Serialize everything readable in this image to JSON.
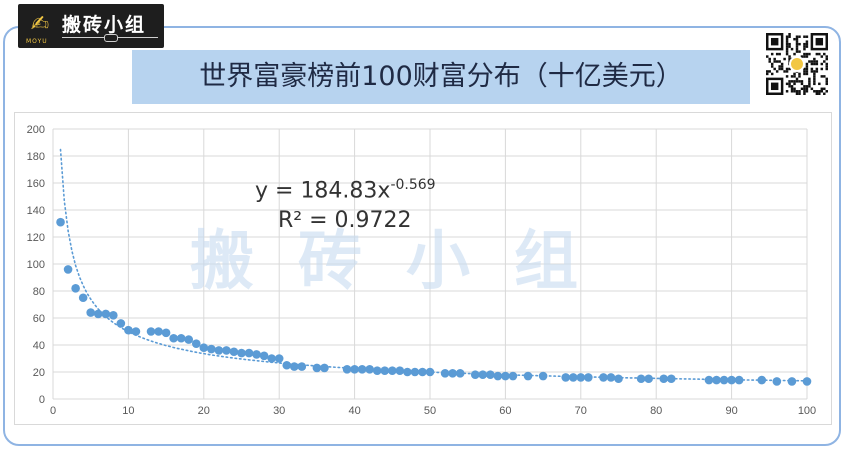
{
  "brand": {
    "logo_text": "搬砖小组",
    "logo_sub": "MOYU",
    "logo_icon": "leaf-pen-icon",
    "watermark": "搬砖小组"
  },
  "title": "世界富豪榜前100财富分布（十亿美元）",
  "qr_code": "qr-code-icon",
  "chart_data": {
    "type": "scatter",
    "title": "",
    "xlabel": "",
    "ylabel": "",
    "xlim": [
      0,
      100
    ],
    "ylim": [
      0,
      200
    ],
    "x_ticks": [
      0,
      10,
      20,
      30,
      40,
      50,
      60,
      70,
      80,
      90,
      100
    ],
    "y_ticks": [
      0,
      20,
      40,
      60,
      80,
      100,
      120,
      140,
      160,
      180,
      200
    ],
    "grid": true,
    "point_color": "#5b9bd5",
    "trendline": {
      "type": "power",
      "a": 184.83,
      "b": -0.569,
      "equation_prefix": "y = 184.83x",
      "equation_exp": "-0.569",
      "r2_text": "R² = 0.9722",
      "color": "#5b9bd5"
    },
    "points": [
      [
        1,
        131
      ],
      [
        2,
        96
      ],
      [
        3,
        82
      ],
      [
        4,
        75
      ],
      [
        5,
        64
      ],
      [
        6,
        63
      ],
      [
        7,
        63
      ],
      [
        8,
        62
      ],
      [
        9,
        56
      ],
      [
        10,
        51
      ],
      [
        11,
        50
      ],
      [
        13,
        50
      ],
      [
        14,
        50
      ],
      [
        15,
        49
      ],
      [
        16,
        45
      ],
      [
        17,
        45
      ],
      [
        18,
        44
      ],
      [
        19,
        41
      ],
      [
        20,
        38
      ],
      [
        21,
        37
      ],
      [
        22,
        36
      ],
      [
        23,
        36
      ],
      [
        24,
        35
      ],
      [
        25,
        34
      ],
      [
        26,
        34
      ],
      [
        27,
        33
      ],
      [
        28,
        32
      ],
      [
        29,
        30
      ],
      [
        30,
        30
      ],
      [
        31,
        25
      ],
      [
        32,
        24
      ],
      [
        33,
        24
      ],
      [
        35,
        23
      ],
      [
        36,
        23
      ],
      [
        39,
        22
      ],
      [
        40,
        22
      ],
      [
        41,
        22
      ],
      [
        42,
        22
      ],
      [
        43,
        21
      ],
      [
        44,
        21
      ],
      [
        45,
        21
      ],
      [
        46,
        21
      ],
      [
        47,
        20
      ],
      [
        48,
        20
      ],
      [
        49,
        20
      ],
      [
        50,
        20
      ],
      [
        52,
        19
      ],
      [
        53,
        19
      ],
      [
        54,
        19
      ],
      [
        56,
        18
      ],
      [
        57,
        18
      ],
      [
        58,
        18
      ],
      [
        59,
        17
      ],
      [
        60,
        17
      ],
      [
        61,
        17
      ],
      [
        63,
        17
      ],
      [
        65,
        17
      ],
      [
        68,
        16
      ],
      [
        69,
        16
      ],
      [
        70,
        16
      ],
      [
        71,
        16
      ],
      [
        73,
        16
      ],
      [
        74,
        16
      ],
      [
        75,
        15
      ],
      [
        78,
        15
      ],
      [
        79,
        15
      ],
      [
        81,
        15
      ],
      [
        82,
        15
      ],
      [
        87,
        14
      ],
      [
        88,
        14
      ],
      [
        89,
        14
      ],
      [
        90,
        14
      ],
      [
        91,
        14
      ],
      [
        94,
        14
      ],
      [
        96,
        13
      ],
      [
        98,
        13
      ],
      [
        100,
        13
      ]
    ]
  }
}
